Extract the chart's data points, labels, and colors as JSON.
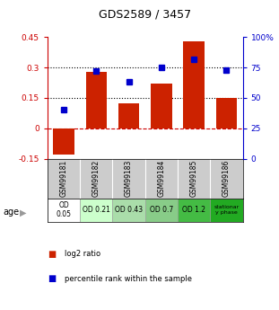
{
  "title": "GDS2589 / 3457",
  "samples": [
    "GSM99181",
    "GSM99182",
    "GSM99183",
    "GSM99184",
    "GSM99185",
    "GSM99186"
  ],
  "log2_ratio": [
    -0.13,
    0.28,
    0.125,
    0.22,
    0.43,
    0.15
  ],
  "percentile_rank": [
    40,
    72,
    63,
    75,
    82,
    73
  ],
  "ylim_left": [
    -0.15,
    0.45
  ],
  "ylim_right": [
    0,
    100
  ],
  "yticks_left": [
    -0.15,
    0.0,
    0.15,
    0.3,
    0.45
  ],
  "yticks_right": [
    0,
    25,
    50,
    75,
    100
  ],
  "ytick_labels_right": [
    "0",
    "25",
    "50",
    "75",
    "100%"
  ],
  "bar_color": "#cc2200",
  "dot_color": "#0000cc",
  "age_labels": [
    "OD\n0.05",
    "OD 0.21",
    "OD 0.43",
    "OD 0.7",
    "OD 1.2",
    "stationar\ny phase"
  ],
  "age_bg_colors": [
    "#ffffff",
    "#ccffcc",
    "#aaddaa",
    "#88cc88",
    "#44bb44",
    "#22aa22"
  ],
  "sample_bg_color": "#cccccc",
  "legend_bar_label": "log2 ratio",
  "legend_dot_label": "percentile rank within the sample",
  "age_label": "age"
}
